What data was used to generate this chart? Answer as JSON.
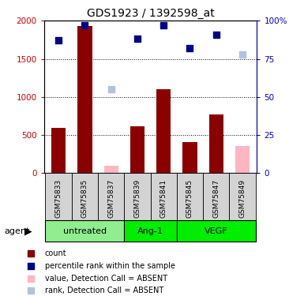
{
  "title": "GDS1923 / 1392598_at",
  "samples": [
    "GSM75833",
    "GSM75835",
    "GSM75837",
    "GSM75839",
    "GSM75841",
    "GSM75845",
    "GSM75847",
    "GSM75849"
  ],
  "bar_values": [
    590,
    1930,
    null,
    620,
    1100,
    410,
    770,
    null
  ],
  "bar_absent": [
    null,
    null,
    100,
    null,
    null,
    null,
    null,
    360
  ],
  "rank_values": [
    87,
    97,
    null,
    88,
    97,
    82,
    91,
    null
  ],
  "rank_absent": [
    null,
    null,
    55,
    null,
    null,
    null,
    null,
    78
  ],
  "bar_color": "#8b0000",
  "bar_absent_color": "#ffb6c1",
  "rank_color": "#00008b",
  "rank_absent_color": "#b0c4de",
  "ylim_left": [
    0,
    2000
  ],
  "ylim_right": [
    0,
    100
  ],
  "yticks_left": [
    0,
    500,
    1000,
    1500,
    2000
  ],
  "ytick_labels_left": [
    "0",
    "500",
    "1000",
    "1500",
    "2000"
  ],
  "yticks_right": [
    0,
    25,
    50,
    75,
    100
  ],
  "ytick_labels_right": [
    "0",
    "25",
    "50",
    "75",
    "100%"
  ],
  "left_tick_color": "#cc0000",
  "right_tick_color": "#0000cc",
  "group_configs": [
    {
      "label": "untreated",
      "indices": [
        0,
        1,
        2
      ],
      "color": "#90ee90"
    },
    {
      "label": "Ang-1",
      "indices": [
        3,
        4
      ],
      "color": "#00ee00"
    },
    {
      "label": "VEGF",
      "indices": [
        5,
        6,
        7
      ],
      "color": "#00ee00"
    }
  ],
  "legend_items": [
    {
      "color": "#8b0000",
      "label": "count"
    },
    {
      "color": "#00008b",
      "label": "percentile rank within the sample"
    },
    {
      "color": "#ffb6c1",
      "label": "value, Detection Call = ABSENT"
    },
    {
      "color": "#b0c4de",
      "label": "rank, Detection Call = ABSENT"
    }
  ],
  "agent_label": "agent",
  "sample_bg_color": "#d3d3d3",
  "grid_color": "black",
  "bar_width": 0.55
}
